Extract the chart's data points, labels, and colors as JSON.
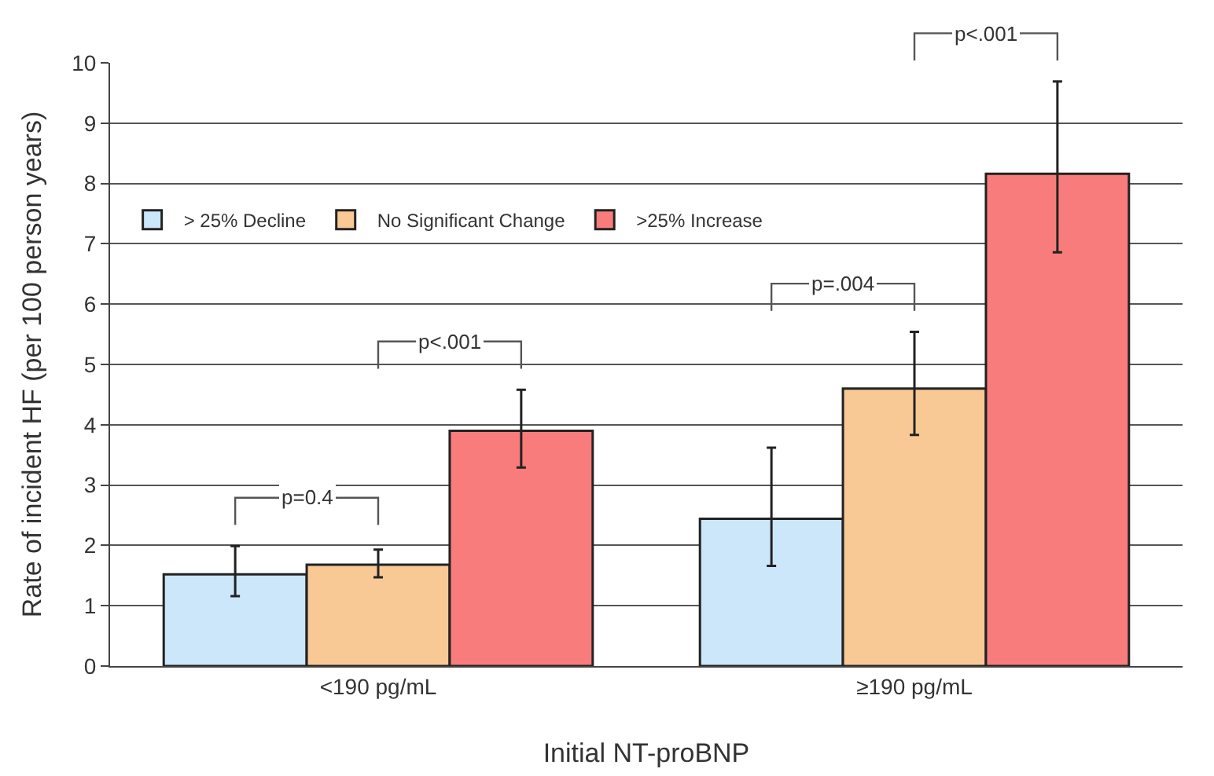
{
  "chart_data": {
    "type": "bar",
    "xlabel": "Initial NT-proBNP",
    "ylabel": "Rate of incident HF (per 100 person years)",
    "categories": [
      "<190 pg/mL",
      "≥190 pg/mL"
    ],
    "series": [
      {
        "name": "> 25% Decline",
        "color": "#cce6fa",
        "values": [
          1.52,
          2.44
        ],
        "errors": [
          [
            1.16,
            1.99
          ],
          [
            1.66,
            3.62
          ]
        ]
      },
      {
        "name": "No Significant Change",
        "color": "#f9c995",
        "values": [
          1.68,
          4.6
        ],
        "errors": [
          [
            1.47,
            1.93
          ],
          [
            3.83,
            5.54
          ]
        ]
      },
      {
        "name": ">25% Increase",
        "color": "#f87c7c",
        "values": [
          3.9,
          8.16
        ],
        "errors": [
          [
            3.29,
            4.58
          ],
          [
            6.86,
            9.69
          ]
        ]
      }
    ],
    "annotations": [
      "p=0.4",
      "p<.001",
      "p=.004",
      "p<.001"
    ],
    "ylim": [
      0,
      10
    ],
    "yticks": [
      0,
      1,
      2,
      3,
      4,
      5,
      6,
      7,
      8,
      9,
      10
    ],
    "grid": "y",
    "legend": "top left"
  }
}
